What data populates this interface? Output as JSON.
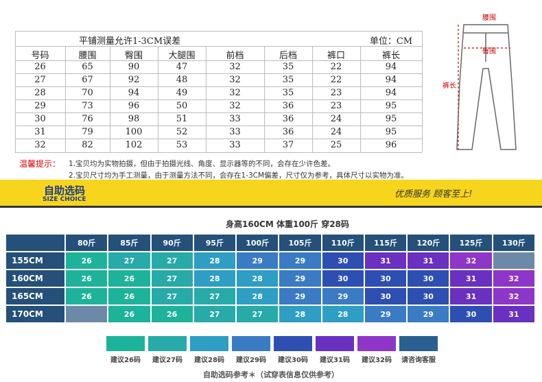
{
  "size_table": {
    "note": "平铺测量允许1-3CM误差",
    "unit": "单位：CM",
    "headers": [
      "号码",
      "腰围",
      "臀围",
      "大腿围",
      "前档",
      "后档",
      "裤口",
      "裤长"
    ],
    "rows": [
      [
        26,
        65,
        90,
        47,
        32,
        35,
        22,
        94
      ],
      [
        27,
        67,
        92,
        48,
        32,
        35,
        22,
        94
      ],
      [
        28,
        70,
        94,
        49,
        32,
        35,
        23,
        94
      ],
      [
        29,
        73,
        96,
        50,
        32,
        36,
        23,
        95
      ],
      [
        30,
        76,
        98,
        51,
        33,
        36,
        24,
        95
      ],
      [
        31,
        79,
        100,
        52,
        33,
        36,
        24,
        95
      ],
      [
        32,
        82,
        102,
        53,
        33,
        37,
        25,
        96
      ]
    ]
  },
  "diagram": {
    "waist": "腰围",
    "hip": "臀围",
    "length": "裤长"
  },
  "tips": {
    "label": "温馨提示：",
    "lines": [
      "1.宝贝均为实物拍摄，但由于拍摄光线、角度、显示器等的不同，会存在少许色差。",
      "2.宝贝尺寸均为手工测量，由于测量方法不同，会存在1-3CM偏差，尺寸仅为参考，具体尺寸以实物为准。"
    ]
  },
  "banner": {
    "title": "自助选码",
    "subtitle": "SIZE CHOICE",
    "slogan": "优质服务 顾客至上!"
  },
  "size_choice": {
    "example": "身高160CM 体重100斤 穿28码",
    "weights": [
      "80斤",
      "85斤",
      "90斤",
      "95斤",
      "100斤",
      "105斤",
      "110斤",
      "115斤",
      "120斤",
      "125斤",
      "130斤"
    ],
    "rows": [
      {
        "height": "155CM",
        "sizes": [
          26,
          27,
          27,
          28,
          29,
          29,
          30,
          31,
          31,
          32,
          null
        ]
      },
      {
        "height": "160CM",
        "sizes": [
          26,
          26,
          27,
          28,
          28,
          29,
          30,
          30,
          30,
          31,
          32
        ]
      },
      {
        "height": "165CM",
        "sizes": [
          26,
          26,
          27,
          27,
          28,
          29,
          29,
          30,
          30,
          31,
          32
        ]
      },
      {
        "height": "170CM",
        "sizes": [
          null,
          26,
          26,
          27,
          27,
          28,
          28,
          29,
          29,
          30,
          31
        ]
      }
    ],
    "legend": [
      {
        "label": "建议26码",
        "color": "#1db39a"
      },
      {
        "label": "建议27码",
        "color": "#27aaa8"
      },
      {
        "label": "建议28码",
        "color": "#2e9ec4"
      },
      {
        "label": "建议29码",
        "color": "#3a7bc4"
      },
      {
        "label": "建议30码",
        "color": "#2d4fb2"
      },
      {
        "label": "建议31码",
        "color": "#6a30c0"
      },
      {
        "label": "建议32码",
        "color": "#8e36c8"
      },
      {
        "label": "请咨询客服",
        "color": "#2a5f8f"
      }
    ],
    "footnote": "自助选码参考＊（试穿表信息仅供参考）"
  }
}
